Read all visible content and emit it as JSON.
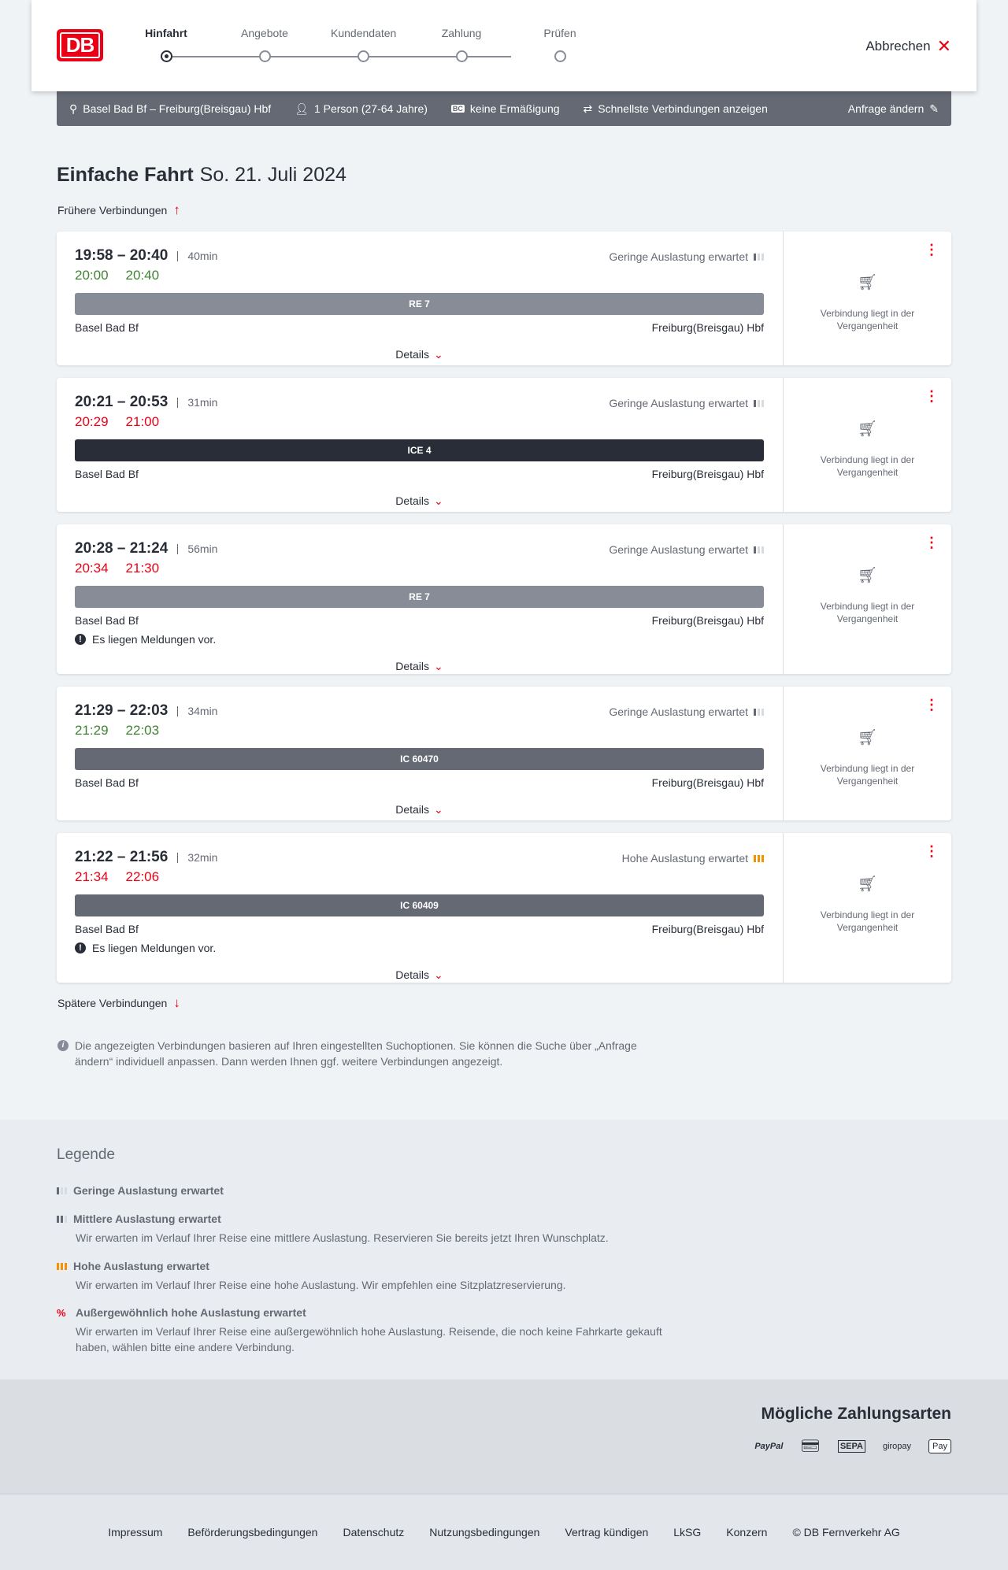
{
  "header": {
    "logo": "DB",
    "steps": [
      "Hinfahrt",
      "Angebote",
      "Kundendaten",
      "Zahlung",
      "Prüfen"
    ],
    "active_step": 0,
    "cancel_label": "Abbrechen"
  },
  "search": {
    "route": "Basel Bad Bf – Freiburg(Breisgau) Hbf",
    "passengers": "1 Person (27-64 Jahre)",
    "discount_badge": "BC",
    "discount": "keine Ermäßigung",
    "option": "Schnellste Verbindungen anzeigen",
    "edit_label": "Anfrage ändern"
  },
  "page": {
    "title": "Einfache Fahrt",
    "date": "So. 21. Juli 2024",
    "earlier": "Frühere Verbindungen",
    "later": "Spätere Verbindungen"
  },
  "colors": {
    "accent": "#ec0016",
    "on_time": "#408335",
    "delay": "#ec0016",
    "high_load": "#f39200"
  },
  "connections": [
    {
      "times": "19:58 – 20:40",
      "duration": "40min",
      "rt_dep": "20:00",
      "rt_arr": "20:40",
      "rt_status": "on-time",
      "load": "Geringe Auslastung erwartet",
      "load_level": "low",
      "train": "RE 7",
      "train_color": "#878c96",
      "from": "Basel Bad Bf",
      "to": "Freiburg(Breisgau) Hbf",
      "message": "",
      "details": "Details",
      "past": "Verbindung liegt in der Vergangenheit"
    },
    {
      "times": "20:21 – 20:53",
      "duration": "31min",
      "rt_dep": "20:29",
      "rt_arr": "21:00",
      "rt_status": "delayed",
      "load": "Geringe Auslastung erwartet",
      "load_level": "low",
      "train": "ICE 4",
      "train_color": "#282d37",
      "from": "Basel Bad Bf",
      "to": "Freiburg(Breisgau) Hbf",
      "message": "",
      "details": "Details",
      "past": "Verbindung liegt in der Vergangenheit"
    },
    {
      "times": "20:28 – 21:24",
      "duration": "56min",
      "rt_dep": "20:34",
      "rt_arr": "21:30",
      "rt_status": "delayed",
      "load": "Geringe Auslastung erwartet",
      "load_level": "low",
      "train": "RE 7",
      "train_color": "#878c96",
      "from": "Basel Bad Bf",
      "to": "Freiburg(Breisgau) Hbf",
      "message": "Es liegen Meldungen vor.",
      "details": "Details",
      "past": "Verbindung liegt in der Vergangenheit"
    },
    {
      "times": "21:29 – 22:03",
      "duration": "34min",
      "rt_dep": "21:29",
      "rt_arr": "22:03",
      "rt_status": "on-time",
      "load": "Geringe Auslastung erwartet",
      "load_level": "low",
      "train": "IC 60470",
      "train_color": "#646973",
      "from": "Basel Bad Bf",
      "to": "Freiburg(Breisgau) Hbf",
      "message": "",
      "details": "Details",
      "past": "Verbindung liegt in der Vergangenheit"
    },
    {
      "times": "21:22 – 21:56",
      "duration": "32min",
      "rt_dep": "21:34",
      "rt_arr": "22:06",
      "rt_status": "delayed",
      "load": "Hohe Auslastung erwartet",
      "load_level": "high",
      "train": "IC 60409",
      "train_color": "#646973",
      "from": "Basel Bad Bf",
      "to": "Freiburg(Breisgau) Hbf",
      "message": "Es liegen Meldungen vor.",
      "details": "Details",
      "past": "Verbindung liegt in der Vergangenheit"
    }
  ],
  "note": "Die angezeigten Verbindungen basieren auf Ihren eingestellten Suchoptionen. Sie können die Suche über „Anfrage ändern“ individuell anpassen. Dann werden Ihnen ggf. weitere Verbindungen angezeigt.",
  "legend": {
    "title": "Legende",
    "items": [
      {
        "title": "Geringe Auslastung erwartet",
        "desc": ""
      },
      {
        "title": "Mittlere Auslastung erwartet",
        "desc": "Wir erwarten im Verlauf Ihrer Reise eine mittlere Auslastung. Reservieren Sie bereits jetzt Ihren Wunschplatz."
      },
      {
        "title": "Hohe Auslastung erwartet",
        "desc": "Wir erwarten im Verlauf Ihrer Reise eine hohe Auslastung. Wir empfehlen eine Sitzplatzreservierung."
      },
      {
        "title": "Außergewöhnlich hohe Auslastung erwartet",
        "desc": "Wir erwarten im Verlauf Ihrer Reise eine außergewöhnlich hohe Auslastung. Reisende, die noch keine Fahrkarte gekauft haben, wählen bitte eine andere Verbindung."
      }
    ]
  },
  "payment": {
    "title": "Mögliche Zahlungsarten",
    "methods": [
      "PayPal",
      "Kreditkarte",
      "SEPA",
      "giropay",
      "Pay"
    ]
  },
  "footer": [
    "Impressum",
    "Beförderungsbedingungen",
    "Datenschutz",
    "Nutzungsbedingungen",
    "Vertrag kündigen",
    "LkSG",
    "Konzern",
    "© DB Fernverkehr AG"
  ]
}
